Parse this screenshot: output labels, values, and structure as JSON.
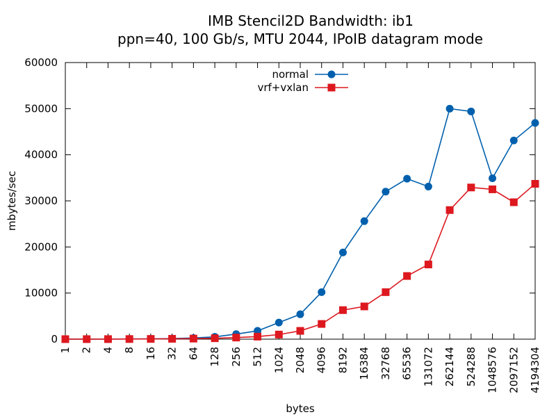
{
  "chart_data": {
    "type": "line",
    "title": "IMB Stencil2D Bandwidth: ib1",
    "subtitle": "ppn=40, 100 Gb/s, MTU 2044, IPoIB datagram mode",
    "xlabel": "bytes",
    "ylabel": "mbytes/sec",
    "ylim": [
      0,
      60000
    ],
    "yticks": [
      "0",
      "10000",
      "20000",
      "30000",
      "40000",
      "50000",
      "60000"
    ],
    "categories": [
      "1",
      "2",
      "4",
      "8",
      "16",
      "32",
      "64",
      "128",
      "256",
      "512",
      "1024",
      "2048",
      "4096",
      "8192",
      "16384",
      "32768",
      "65536",
      "131072",
      "262144",
      "524288",
      "1048576",
      "2097152",
      "4194304"
    ],
    "legend_position": "top-center",
    "grid": false,
    "series": [
      {
        "name": "normal",
        "color": "#0060ad",
        "marker": "circle",
        "values": [
          5,
          10,
          20,
          40,
          70,
          130,
          250,
          500,
          1100,
          1800,
          3600,
          5400,
          10200,
          18800,
          25600,
          32000,
          34800,
          33100,
          50000,
          49400,
          34900,
          43100,
          46900
        ]
      },
      {
        "name": "vrf+vxlan",
        "color": "#dd181f",
        "marker": "square",
        "values": [
          5,
          10,
          15,
          30,
          50,
          80,
          120,
          200,
          350,
          550,
          1000,
          1800,
          3300,
          6300,
          7100,
          10200,
          13700,
          16200,
          28000,
          32900,
          32500,
          29700,
          33700
        ]
      }
    ]
  }
}
